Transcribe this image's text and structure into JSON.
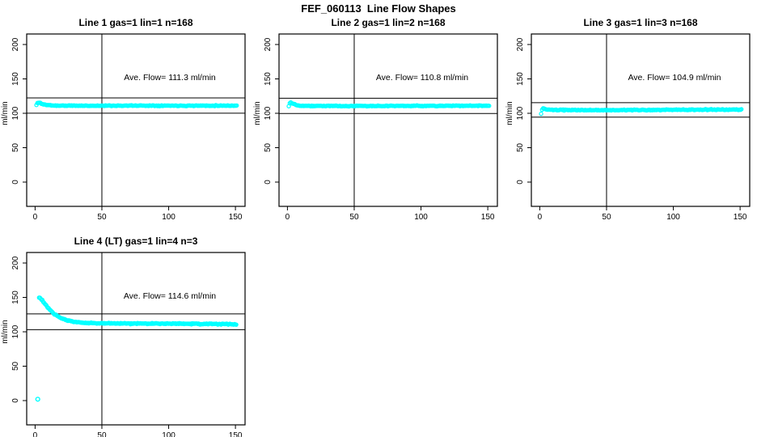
{
  "title": "FEF_060113  Line Flow Shapes",
  "marker_color": "#00FFFF",
  "axis_color": "#000000",
  "chart_data": [
    {
      "type": "scatter",
      "title": "Line 1 gas=1 lin=1 n=168",
      "n": 168,
      "ave_flow": 111.3,
      "ave_flow_text": "Ave. Flow=  111.3  ml/min",
      "ylabel": "ml/min",
      "xlabel": "",
      "x_ticks": [
        0,
        50,
        100,
        150
      ],
      "y_ticks": [
        0,
        50,
        100,
        150,
        200
      ],
      "xlim": [
        -6.3,
        157.2
      ],
      "ylim": [
        -35.3,
        215.3
      ],
      "vline_x": 50,
      "hlines": [
        122.4,
        100.2
      ],
      "marker": "open-circle",
      "marker_color": "#00FFFF",
      "x_range": [
        1,
        151
      ],
      "x_step": 0.75,
      "noise": 0.7,
      "seed": 11,
      "anchors": [
        [
          1,
          112
        ],
        [
          2,
          115.5
        ],
        [
          4,
          115
        ],
        [
          6,
          113
        ],
        [
          9,
          112
        ],
        [
          15,
          111.2
        ],
        [
          40,
          111
        ],
        [
          80,
          111.2
        ],
        [
          120,
          111.1
        ],
        [
          151,
          111.2
        ]
      ],
      "outliers": []
    },
    {
      "type": "scatter",
      "title": "Line 2 gas=1 lin=2 n=168",
      "n": 168,
      "ave_flow": 110.8,
      "ave_flow_text": "Ave. Flow=  110.8  ml/min",
      "ylabel": "ml/min",
      "xlabel": "",
      "x_ticks": [
        0,
        50,
        100,
        150
      ],
      "y_ticks": [
        0,
        50,
        100,
        150,
        200
      ],
      "xlim": [
        -6.3,
        157.2
      ],
      "ylim": [
        -35.3,
        215.3
      ],
      "vline_x": 50,
      "hlines": [
        121.9,
        99.7
      ],
      "marker": "open-circle",
      "marker_color": "#00FFFF",
      "x_range": [
        1,
        151
      ],
      "x_step": 0.75,
      "noise": 0.7,
      "seed": 22,
      "anchors": [
        [
          1,
          110.5
        ],
        [
          2,
          116
        ],
        [
          4,
          114.5
        ],
        [
          6,
          112.5
        ],
        [
          9,
          111.3
        ],
        [
          15,
          110.8
        ],
        [
          50,
          110.6
        ],
        [
          100,
          110.8
        ],
        [
          151,
          111
        ]
      ],
      "outliers": []
    },
    {
      "type": "scatter",
      "title": "Line 3 gas=1 lin=3 n=168",
      "n": 168,
      "ave_flow": 104.9,
      "ave_flow_text": "Ave. Flow=  104.9  ml/min",
      "ylabel": "ml/min",
      "xlabel": "",
      "x_ticks": [
        0,
        50,
        100,
        150
      ],
      "y_ticks": [
        0,
        50,
        100,
        150,
        200
      ],
      "xlim": [
        -6.3,
        157.2
      ],
      "ylim": [
        -35.3,
        215.3
      ],
      "vline_x": 50,
      "hlines": [
        115.4,
        94.4
      ],
      "marker": "open-circle",
      "marker_color": "#00FFFF",
      "x_range": [
        1,
        151
      ],
      "x_step": 0.75,
      "noise": 0.8,
      "seed": 33,
      "anchors": [
        [
          1,
          99
        ],
        [
          2,
          107.5
        ],
        [
          4,
          106
        ],
        [
          6,
          105.3
        ],
        [
          10,
          104.8
        ],
        [
          50,
          104.6
        ],
        [
          100,
          105
        ],
        [
          151,
          105.5
        ]
      ],
      "outliers": []
    },
    {
      "type": "scatter",
      "title": "Line 4 (LT) gas=1 lin=4 n=3",
      "n": 3,
      "ave_flow": 114.6,
      "ave_flow_text": "Ave. Flow=  114.6  ml/min",
      "ylabel": "ml/min",
      "xlabel": "",
      "x_ticks": [
        0,
        50,
        100,
        150
      ],
      "y_ticks": [
        0,
        50,
        100,
        150,
        200
      ],
      "xlim": [
        -6.3,
        157.2
      ],
      "ylim": [
        -35.3,
        215.3
      ],
      "vline_x": 50,
      "hlines": [
        126.1,
        103.1
      ],
      "marker": "open-circle",
      "marker_color": "#00FFFF",
      "x_range": [
        3,
        151
      ],
      "x_step": 0.6,
      "noise": 1.0,
      "seed": 44,
      "anchors": [
        [
          3,
          150
        ],
        [
          4,
          148.5
        ],
        [
          5,
          146.5
        ],
        [
          6,
          144
        ],
        [
          7,
          141.5
        ],
        [
          8,
          139
        ],
        [
          10,
          134.5
        ],
        [
          12,
          130
        ],
        [
          14,
          126.5
        ],
        [
          17,
          122.5
        ],
        [
          20,
          119.5
        ],
        [
          24,
          116.8
        ],
        [
          28,
          114.8
        ],
        [
          33,
          113.6
        ],
        [
          40,
          112.8
        ],
        [
          50,
          112.3
        ],
        [
          70,
          112
        ],
        [
          100,
          112
        ],
        [
          130,
          111.5
        ],
        [
          151,
          111
        ]
      ],
      "outliers": [
        [
          2,
          2
        ]
      ]
    }
  ]
}
